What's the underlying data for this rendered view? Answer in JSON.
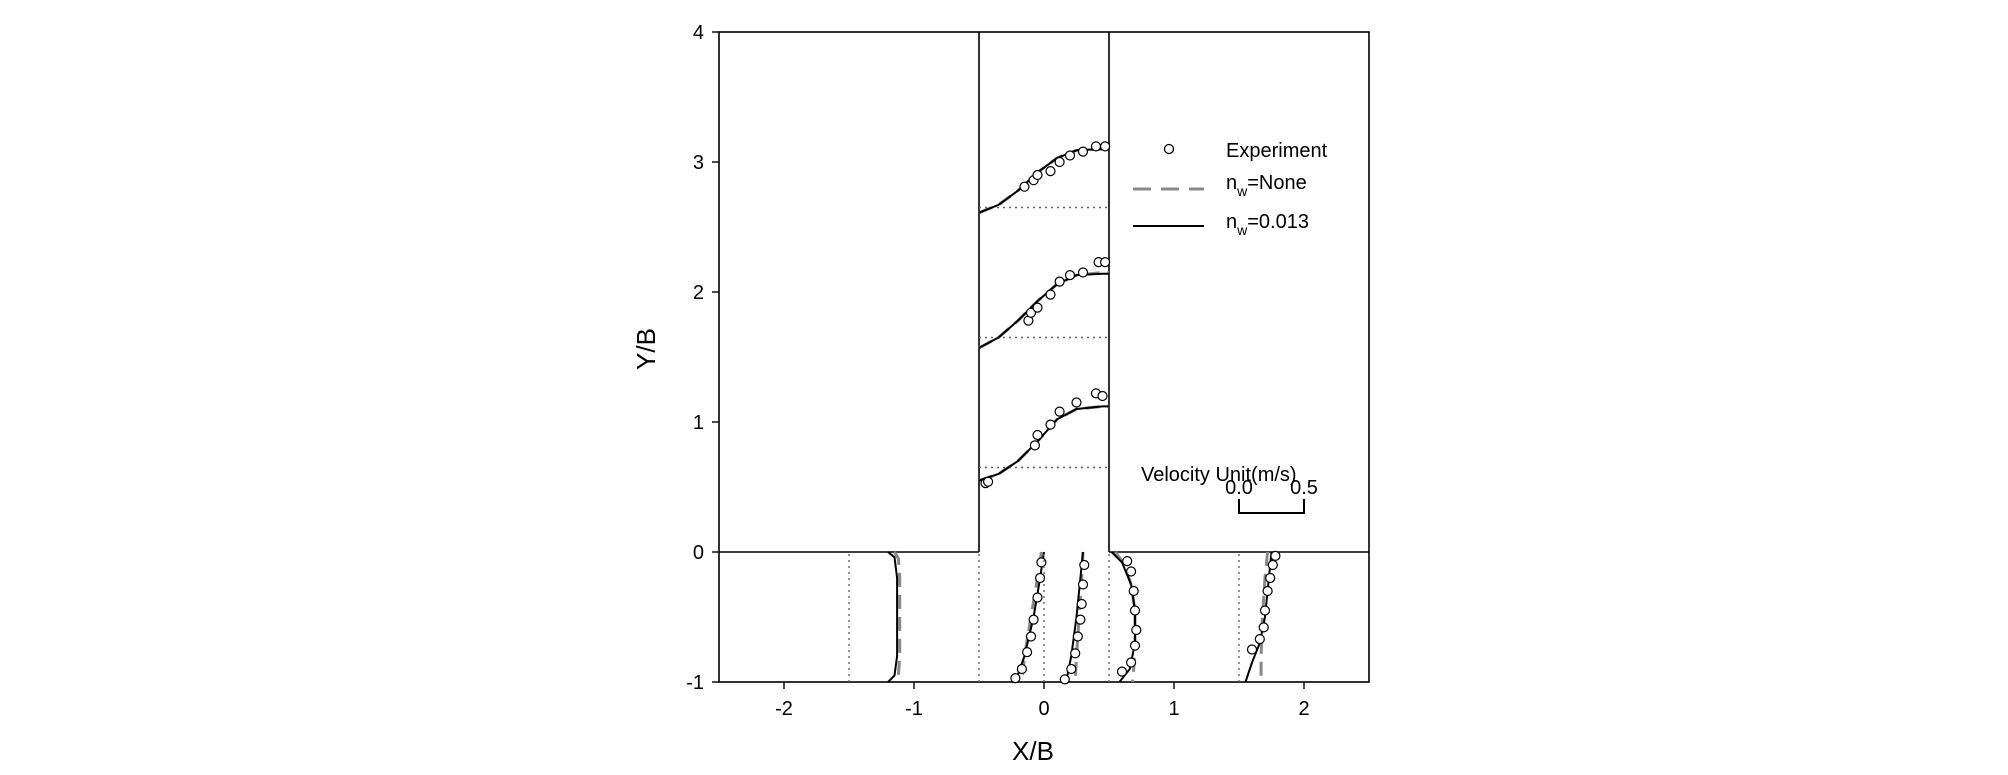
{
  "chart_data": {
    "type": "line",
    "xlabel": "X/B",
    "ylabel": "Y/B",
    "xlim": [
      -2.5,
      2.5
    ],
    "ylim": [
      -1,
      4
    ],
    "x_ticks": [
      "-2",
      "-1",
      "0",
      "1",
      "2"
    ],
    "y_ticks": [
      "-1",
      "0",
      "1",
      "2",
      "3",
      "4"
    ],
    "legend": {
      "placement": "top-right",
      "entries": [
        {
          "key": "experiment",
          "main": "Experiment",
          "sub": "",
          "rest": "",
          "style": "circle"
        },
        {
          "key": "none",
          "main": "n",
          "sub": "w",
          "rest": "=None",
          "style": "dashed",
          "color": "#888888"
        },
        {
          "key": "n013",
          "main": "n",
          "sub": "w",
          "rest": "=0.013",
          "style": "solid",
          "color": "#000000"
        }
      ]
    },
    "velocity_scale": {
      "title": "Velocity Unit(m/s)",
      "left_label": "0.0",
      "right_label": "0.5",
      "span": [
        1.5,
        2.0
      ],
      "label_y": 0.3
    },
    "geometry": {
      "channel": {
        "x": [
          -0.5,
          0.5
        ],
        "y": [
          0,
          4
        ]
      },
      "main_channel": {
        "x": [
          -2.5,
          2.5
        ],
        "y": [
          -1,
          0
        ]
      }
    },
    "series": [
      {
        "kind": "dotted",
        "baseline": [
          [
            -1.5,
            -1
          ],
          [
            -1.5,
            0
          ]
        ]
      },
      {
        "kind": "model",
        "name": "n_w=None",
        "style": "dashed",
        "color": "#888888",
        "points": [
          [
            -1.15,
            0
          ],
          [
            -1.12,
            -0.05
          ],
          [
            -1.11,
            -0.2
          ],
          [
            -1.11,
            -0.5
          ],
          [
            -1.11,
            -0.8
          ],
          [
            -1.12,
            -0.95
          ],
          [
            -1.14,
            -1
          ]
        ]
      },
      {
        "kind": "model",
        "name": "n_w=0.013",
        "style": "solid",
        "color": "#000000",
        "points": [
          [
            -1.2,
            0
          ],
          [
            -1.15,
            -0.04
          ],
          [
            -1.13,
            -0.2
          ],
          [
            -1.13,
            -0.5
          ],
          [
            -1.13,
            -0.8
          ],
          [
            -1.15,
            -0.95
          ],
          [
            -1.2,
            -1
          ]
        ]
      },
      {
        "kind": "dotted",
        "baseline": [
          [
            -0.5,
            -1
          ],
          [
            -0.5,
            0
          ]
        ]
      },
      {
        "kind": "model",
        "style": "dashed",
        "color": "#888888",
        "points": [
          [
            -0.02,
            0
          ],
          [
            -0.05,
            -0.2
          ],
          [
            -0.1,
            -0.5
          ],
          [
            -0.15,
            -0.8
          ],
          [
            -0.17,
            -1
          ]
        ]
      },
      {
        "kind": "model",
        "style": "solid",
        "color": "#000000",
        "points": [
          [
            0.0,
            0
          ],
          [
            -0.03,
            -0.2
          ],
          [
            -0.08,
            -0.5
          ],
          [
            -0.15,
            -0.8
          ],
          [
            -0.22,
            -1
          ]
        ]
      },
      {
        "kind": "exp",
        "points": [
          [
            -0.02,
            -0.08
          ],
          [
            -0.03,
            -0.2
          ],
          [
            -0.05,
            -0.35
          ],
          [
            -0.08,
            -0.52
          ],
          [
            -0.1,
            -0.65
          ],
          [
            -0.13,
            -0.77
          ],
          [
            -0.17,
            -0.9
          ],
          [
            -0.22,
            -0.97
          ]
        ]
      },
      {
        "kind": "dotted",
        "baseline": [
          [
            0.0,
            -1
          ],
          [
            0.0,
            0
          ]
        ]
      },
      {
        "kind": "model",
        "style": "dashed",
        "color": "#888888",
        "points": [
          [
            0.3,
            0
          ],
          [
            0.29,
            -0.2
          ],
          [
            0.27,
            -0.5
          ],
          [
            0.25,
            -0.8
          ],
          [
            0.24,
            -1
          ]
        ]
      },
      {
        "kind": "model",
        "style": "solid",
        "color": "#000000",
        "points": [
          [
            0.3,
            0
          ],
          [
            0.28,
            -0.2
          ],
          [
            0.25,
            -0.5
          ],
          [
            0.21,
            -0.8
          ],
          [
            0.17,
            -1
          ]
        ]
      },
      {
        "kind": "exp",
        "points": [
          [
            0.31,
            -0.1
          ],
          [
            0.3,
            -0.25
          ],
          [
            0.29,
            -0.4
          ],
          [
            0.28,
            -0.52
          ],
          [
            0.26,
            -0.65
          ],
          [
            0.24,
            -0.78
          ],
          [
            0.21,
            -0.9
          ],
          [
            0.16,
            -0.98
          ]
        ]
      },
      {
        "kind": "dotted",
        "baseline": [
          [
            0.5,
            -1
          ],
          [
            0.5,
            0
          ]
        ]
      },
      {
        "kind": "model",
        "style": "dashed",
        "color": "#888888",
        "points": [
          [
            0.55,
            0
          ],
          [
            0.62,
            -0.1
          ],
          [
            0.67,
            -0.25
          ],
          [
            0.7,
            -0.45
          ],
          [
            0.7,
            -0.7
          ],
          [
            0.69,
            -0.9
          ],
          [
            0.68,
            -1
          ]
        ]
      },
      {
        "kind": "model",
        "style": "solid",
        "color": "#000000",
        "points": [
          [
            0.52,
            0
          ],
          [
            0.6,
            -0.08
          ],
          [
            0.67,
            -0.25
          ],
          [
            0.7,
            -0.45
          ],
          [
            0.7,
            -0.7
          ],
          [
            0.66,
            -0.9
          ],
          [
            0.58,
            -1
          ]
        ]
      },
      {
        "kind": "exp",
        "points": [
          [
            0.64,
            -0.07
          ],
          [
            0.67,
            -0.15
          ],
          [
            0.69,
            -0.3
          ],
          [
            0.7,
            -0.45
          ],
          [
            0.71,
            -0.6
          ],
          [
            0.7,
            -0.72
          ],
          [
            0.67,
            -0.85
          ],
          [
            0.6,
            -0.92
          ]
        ]
      },
      {
        "kind": "dotted",
        "baseline": [
          [
            1.5,
            -1
          ],
          [
            1.5,
            0
          ]
        ]
      },
      {
        "kind": "model",
        "style": "dashed",
        "color": "#888888",
        "points": [
          [
            1.72,
            0
          ],
          [
            1.7,
            -0.2
          ],
          [
            1.68,
            -0.5
          ],
          [
            1.67,
            -0.8
          ],
          [
            1.67,
            -1
          ]
        ]
      },
      {
        "kind": "model",
        "style": "solid",
        "color": "#000000",
        "points": [
          [
            1.75,
            0
          ],
          [
            1.74,
            -0.1
          ],
          [
            1.72,
            -0.3
          ],
          [
            1.7,
            -0.5
          ],
          [
            1.66,
            -0.7
          ],
          [
            1.6,
            -0.85
          ],
          [
            1.55,
            -1
          ]
        ]
      },
      {
        "kind": "exp",
        "points": [
          [
            1.78,
            -0.03
          ],
          [
            1.76,
            -0.1
          ],
          [
            1.74,
            -0.2
          ],
          [
            1.72,
            -0.3
          ],
          [
            1.7,
            -0.45
          ],
          [
            1.69,
            -0.58
          ],
          [
            1.66,
            -0.67
          ],
          [
            1.6,
            -0.75
          ]
        ]
      },
      {
        "kind": "dotted",
        "baseline": [
          [
            -0.5,
            0.65
          ],
          [
            0.5,
            0.65
          ]
        ]
      },
      {
        "kind": "model",
        "style": "dashed",
        "color": "#888888",
        "points": [
          [
            -0.5,
            0.55
          ],
          [
            -0.35,
            0.6
          ],
          [
            -0.2,
            0.7
          ],
          [
            -0.05,
            0.85
          ],
          [
            0.1,
            1.02
          ],
          [
            0.25,
            1.1
          ],
          [
            0.45,
            1.12
          ],
          [
            0.5,
            1.12
          ]
        ]
      },
      {
        "kind": "model",
        "style": "solid",
        "color": "#000000",
        "points": [
          [
            -0.5,
            0.55
          ],
          [
            -0.35,
            0.6
          ],
          [
            -0.2,
            0.7
          ],
          [
            -0.05,
            0.85
          ],
          [
            0.1,
            1.02
          ],
          [
            0.25,
            1.1
          ],
          [
            0.45,
            1.12
          ],
          [
            0.5,
            1.12
          ]
        ]
      },
      {
        "kind": "exp",
        "points": [
          [
            -0.45,
            0.53
          ],
          [
            -0.43,
            0.54
          ],
          [
            -0.07,
            0.82
          ],
          [
            -0.05,
            0.9
          ],
          [
            0.05,
            0.98
          ],
          [
            0.12,
            1.08
          ],
          [
            0.25,
            1.15
          ],
          [
            0.4,
            1.22
          ],
          [
            0.45,
            1.2
          ]
        ]
      },
      {
        "kind": "dotted",
        "baseline": [
          [
            -0.5,
            1.65
          ],
          [
            0.5,
            1.65
          ]
        ]
      },
      {
        "kind": "model",
        "style": "dashed",
        "color": "#888888",
        "points": [
          [
            -0.5,
            1.57
          ],
          [
            -0.35,
            1.65
          ],
          [
            -0.2,
            1.78
          ],
          [
            -0.05,
            1.93
          ],
          [
            0.1,
            2.06
          ],
          [
            0.25,
            2.13
          ],
          [
            0.45,
            2.15
          ],
          [
            0.5,
            2.15
          ]
        ]
      },
      {
        "kind": "model",
        "style": "solid",
        "color": "#000000",
        "points": [
          [
            -0.5,
            1.57
          ],
          [
            -0.35,
            1.65
          ],
          [
            -0.2,
            1.78
          ],
          [
            -0.05,
            1.93
          ],
          [
            0.1,
            2.06
          ],
          [
            0.25,
            2.13
          ],
          [
            0.45,
            2.14
          ],
          [
            0.5,
            2.14
          ]
        ]
      },
      {
        "kind": "exp",
        "points": [
          [
            -0.12,
            1.78
          ],
          [
            -0.1,
            1.84
          ],
          [
            -0.05,
            1.88
          ],
          [
            0.05,
            1.98
          ],
          [
            0.12,
            2.08
          ],
          [
            0.2,
            2.13
          ],
          [
            0.3,
            2.15
          ],
          [
            0.42,
            2.23
          ],
          [
            0.47,
            2.23
          ]
        ]
      },
      {
        "kind": "dotted",
        "baseline": [
          [
            -0.5,
            2.65
          ],
          [
            0.5,
            2.65
          ]
        ]
      },
      {
        "kind": "model",
        "style": "dashed",
        "color": "#888888",
        "points": [
          [
            -0.5,
            2.61
          ],
          [
            -0.35,
            2.67
          ],
          [
            -0.2,
            2.78
          ],
          [
            -0.05,
            2.92
          ],
          [
            0.1,
            3.03
          ],
          [
            0.25,
            3.09
          ],
          [
            0.45,
            3.1
          ],
          [
            0.5,
            3.1
          ]
        ]
      },
      {
        "kind": "model",
        "style": "solid",
        "color": "#000000",
        "points": [
          [
            -0.5,
            2.61
          ],
          [
            -0.35,
            2.67
          ],
          [
            -0.2,
            2.78
          ],
          [
            -0.05,
            2.92
          ],
          [
            0.1,
            3.03
          ],
          [
            0.25,
            3.09
          ],
          [
            0.45,
            3.1
          ],
          [
            0.5,
            3.1
          ]
        ]
      },
      {
        "kind": "exp",
        "points": [
          [
            -0.15,
            2.81
          ],
          [
            -0.08,
            2.86
          ],
          [
            -0.05,
            2.9
          ],
          [
            0.05,
            2.93
          ],
          [
            0.12,
            3.0
          ],
          [
            0.2,
            3.05
          ],
          [
            0.3,
            3.08
          ],
          [
            0.4,
            3.12
          ],
          [
            0.47,
            3.12
          ]
        ]
      }
    ]
  }
}
